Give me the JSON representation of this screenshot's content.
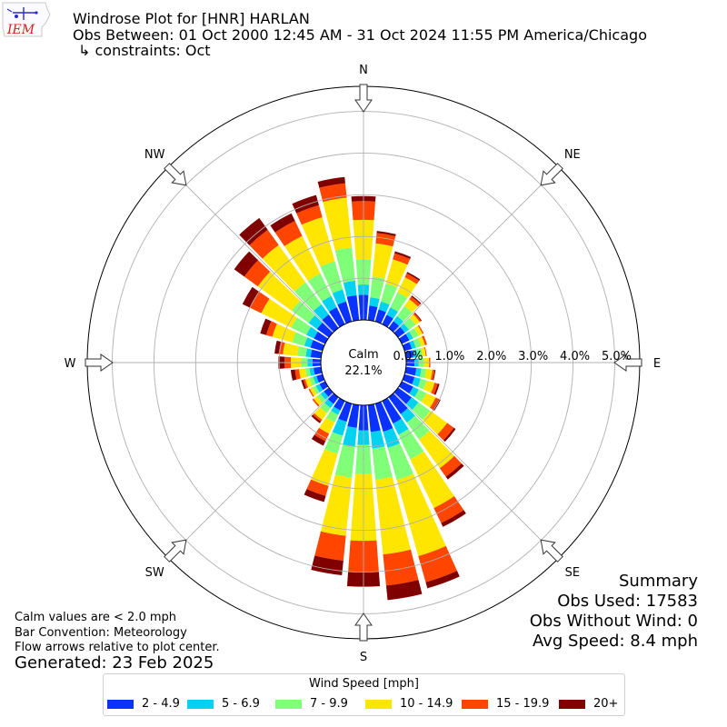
{
  "header": {
    "logo_text": "IEM",
    "title": "Windrose Plot for [HNR] HARLAN",
    "period": "Obs Between: 01 Oct 2000 12:45 AM - 31 Oct 2024 11:55 PM America/Chicago",
    "constraints": "↳ constraints: Oct"
  },
  "notes": {
    "calm_note": "Calm values are < 2.0 mph",
    "bar_convention": "Bar Convention: Meteorology",
    "flow_arrows": "Flow arrows relative to plot center.",
    "generated": "Generated: 23 Feb 2025"
  },
  "summary": {
    "title": "Summary",
    "obs_used": "Obs Used: 17583",
    "obs_without_wind": "Obs Without Wind: 0",
    "avg_speed": "Avg Speed: 8.4 mph"
  },
  "legend": {
    "title": "Wind Speed [mph]",
    "items": [
      {
        "label": "2 - 4.9",
        "color": "#0a32ff"
      },
      {
        "label": "5 - 6.9",
        "color": "#00d2f0"
      },
      {
        "label": "7 - 9.9",
        "color": "#80ff78"
      },
      {
        "label": "10 - 14.9",
        "color": "#ffe600"
      },
      {
        "label": "15 - 19.9",
        "color": "#ff4500"
      },
      {
        "label": "20+",
        "color": "#800000"
      }
    ]
  },
  "chart_data": {
    "type": "windrose",
    "title": "Windrose Plot for [HNR] HARLAN",
    "calm_label": "Calm",
    "calm_value": "22.1%",
    "radial_unit": "percent",
    "radial_max": 5.6,
    "radial_ticks": [
      0,
      1,
      2,
      3,
      4,
      5
    ],
    "radial_tick_labels": [
      "0.0%",
      "1.0%",
      "2.0%",
      "3.0%",
      "4.0%",
      "5.0%"
    ],
    "cardinal_labels": [
      "N",
      "NE",
      "E",
      "SE",
      "S",
      "SW",
      "W",
      "NW"
    ],
    "direction_step_deg": 10,
    "speed_bins": [
      "2 - 4.9",
      "5 - 6.9",
      "7 - 9.9",
      "10 - 14.9",
      "15 - 19.9",
      "20+"
    ],
    "colors": [
      "#0a32ff",
      "#00d2f0",
      "#80ff78",
      "#ffe600",
      "#ff4500",
      "#800000"
    ],
    "directions": [
      0,
      10,
      20,
      30,
      40,
      50,
      60,
      70,
      80,
      90,
      100,
      110,
      120,
      130,
      140,
      150,
      160,
      170,
      180,
      190,
      200,
      210,
      220,
      230,
      240,
      250,
      260,
      270,
      280,
      290,
      300,
      310,
      320,
      330,
      340,
      350
    ],
    "values": [
      [
        0.6,
        0.25,
        0.6,
        0.95,
        0.45,
        0.12
      ],
      [
        0.35,
        0.2,
        0.5,
        0.8,
        0.25,
        0.05
      ],
      [
        0.3,
        0.2,
        0.45,
        0.6,
        0.15,
        0.05
      ],
      [
        0.25,
        0.2,
        0.4,
        0.4,
        0.1,
        0.04
      ],
      [
        0.2,
        0.15,
        0.3,
        0.2,
        0.08,
        0.03
      ],
      [
        0.2,
        0.12,
        0.2,
        0.12,
        0.04,
        0.02
      ],
      [
        0.2,
        0.1,
        0.15,
        0.1,
        0.03,
        0.0
      ],
      [
        0.18,
        0.1,
        0.13,
        0.1,
        0.05,
        0.0
      ],
      [
        0.18,
        0.1,
        0.12,
        0.08,
        0.02,
        0.0
      ],
      [
        0.2,
        0.1,
        0.13,
        0.12,
        0.03,
        0.0
      ],
      [
        0.25,
        0.12,
        0.12,
        0.15,
        0.05,
        0.02
      ],
      [
        0.25,
        0.15,
        0.15,
        0.2,
        0.08,
        0.04
      ],
      [
        0.3,
        0.15,
        0.2,
        0.25,
        0.08,
        0.05
      ],
      [
        0.4,
        0.2,
        0.35,
        0.5,
        0.2,
        0.05
      ],
      [
        0.5,
        0.25,
        0.5,
        0.85,
        0.25,
        0.08
      ],
      [
        0.6,
        0.3,
        0.65,
        1.3,
        0.4,
        0.1
      ],
      [
        0.7,
        0.4,
        0.8,
        1.9,
        0.65,
        0.15
      ],
      [
        0.65,
        0.4,
        0.75,
        1.8,
        0.75,
        0.35
      ],
      [
        0.6,
        0.35,
        0.7,
        1.6,
        0.75,
        0.35
      ],
      [
        0.55,
        0.45,
        0.75,
        1.4,
        0.6,
        0.35
      ],
      [
        0.45,
        0.35,
        0.45,
        0.8,
        0.25,
        0.15
      ],
      [
        0.25,
        0.12,
        0.2,
        0.3,
        0.2,
        0.12
      ],
      [
        0.2,
        0.12,
        0.15,
        0.2,
        0.05,
        0.05
      ],
      [
        0.15,
        0.1,
        0.1,
        0.1,
        0.04,
        0.0
      ],
      [
        0.15,
        0.1,
        0.08,
        0.08,
        0.03,
        0.0
      ],
      [
        0.15,
        0.08,
        0.1,
        0.1,
        0.05,
        0.05
      ],
      [
        0.18,
        0.1,
        0.1,
        0.15,
        0.1,
        0.1
      ],
      [
        0.2,
        0.12,
        0.15,
        0.25,
        0.15,
        0.15
      ],
      [
        0.25,
        0.12,
        0.2,
        0.35,
        0.1,
        0.1
      ],
      [
        0.3,
        0.15,
        0.3,
        0.5,
        0.15,
        0.15
      ],
      [
        0.3,
        0.2,
        0.4,
        0.8,
        0.3,
        0.2
      ],
      [
        0.35,
        0.25,
        0.5,
        1.0,
        0.4,
        0.3
      ],
      [
        0.4,
        0.3,
        0.65,
        1.1,
        0.45,
        0.35
      ],
      [
        0.45,
        0.3,
        0.6,
        1.0,
        0.4,
        0.2
      ],
      [
        0.5,
        0.3,
        0.7,
        1.1,
        0.3,
        0.25
      ],
      [
        0.6,
        0.35,
        0.8,
        1.2,
        0.35,
        0.15
      ]
    ]
  }
}
